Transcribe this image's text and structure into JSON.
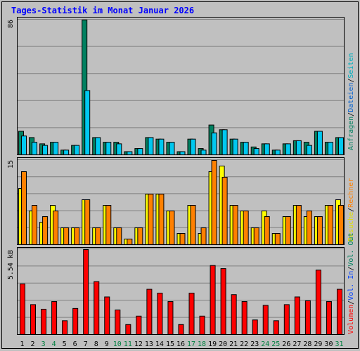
{
  "chart_data": {
    "type": "bar",
    "title": "Tages-Statistik im Monat Januar 2026",
    "categories": [
      "1",
      "2",
      "3",
      "4",
      "5",
      "6",
      "7",
      "8",
      "9",
      "10",
      "11",
      "12",
      "13",
      "14",
      "15",
      "16",
      "17",
      "18",
      "19",
      "20",
      "21",
      "22",
      "23",
      "24",
      "25",
      "26",
      "27",
      "28",
      "29",
      "30",
      "31"
    ],
    "weekend_days": [
      "3",
      "4",
      "10",
      "11",
      "17",
      "18",
      "24",
      "25",
      "31"
    ],
    "grid": true,
    "legend": "right, vertical",
    "panels": [
      {
        "name": "requests",
        "ylabel": "86",
        "ylim": [
          0,
          86
        ],
        "legend_parts": [
          "Anfragen",
          "Dateien",
          "Seiten"
        ],
        "series": [
          {
            "name": "Anfragen",
            "color": "#008060",
            "values": [
              15,
              11,
              7,
              8,
              3,
              6,
              86,
              11,
              8,
              8,
              2,
              4,
              11,
              10,
              8,
              2,
              10,
              4,
              19,
              16,
              10,
              8,
              5,
              7,
              3,
              7,
              9,
              8,
              15,
              8,
              11
            ]
          },
          {
            "name": "Dateien",
            "color": "#00c8f0",
            "values": [
              12,
              8,
              6,
              8,
              3,
              6,
              41,
              11,
              8,
              7,
              2,
              4,
              11,
              10,
              8,
              2,
              10,
              3,
              14,
              16,
              10,
              8,
              4,
              7,
              3,
              7,
              9,
              6,
              15,
              8,
              11
            ]
          },
          {
            "name": "Seiten",
            "color": "#00a0a0",
            "values": [
              1,
              1,
              1,
              1,
              1,
              1,
              1,
              1,
              1,
              1,
              1,
              1,
              1,
              1,
              1,
              1,
              1,
              1,
              1,
              1,
              1,
              1,
              1,
              1,
              1,
              1,
              1,
              1,
              1,
              1,
              1
            ]
          }
        ]
      },
      {
        "name": "visits",
        "ylabel": "15",
        "ylim": [
          0,
          15
        ],
        "legend_parts": [
          "Besuche",
          "Rechner"
        ],
        "series": [
          {
            "name": "Besuche",
            "color": "#ffff00",
            "values": [
              10,
              6,
              4,
              7,
              3,
              3,
              8,
              3,
              7,
              3,
              1,
              3,
              9,
              9,
              6,
              2,
              7,
              2,
              13,
              14,
              7,
              6,
              3,
              6,
              2,
              5,
              7,
              5,
              5,
              7,
              8
            ]
          },
          {
            "name": "Rechner",
            "color": "#ff8000",
            "values": [
              13,
              7,
              5,
              6,
              3,
              3,
              8,
              3,
              7,
              3,
              1,
              3,
              9,
              9,
              6,
              2,
              7,
              3,
              15,
              12,
              7,
              6,
              3,
              5,
              2,
              5,
              7,
              6,
              5,
              7,
              7
            ]
          }
        ]
      },
      {
        "name": "volume",
        "ylabel": "5.54 kB",
        "ylim": [
          0,
          5.54
        ],
        "legend_parts": [
          "Volumen",
          "Vol. In",
          "Vol. Out"
        ],
        "series": [
          {
            "name": "Volumen",
            "color": "#ff0000",
            "values": [
              3.3,
              1.95,
              1.65,
              2.15,
              0.9,
              1.7,
              5.54,
              3.45,
              2.45,
              1.6,
              0.65,
              1.2,
              2.95,
              2.7,
              2.15,
              0.65,
              2.7,
              1.2,
              4.5,
              4.3,
              2.6,
              2.15,
              0.95,
              1.9,
              0.9,
              1.95,
              2.45,
              2.2,
              4.2,
              2.15,
              2.95
            ]
          }
        ]
      }
    ]
  }
}
